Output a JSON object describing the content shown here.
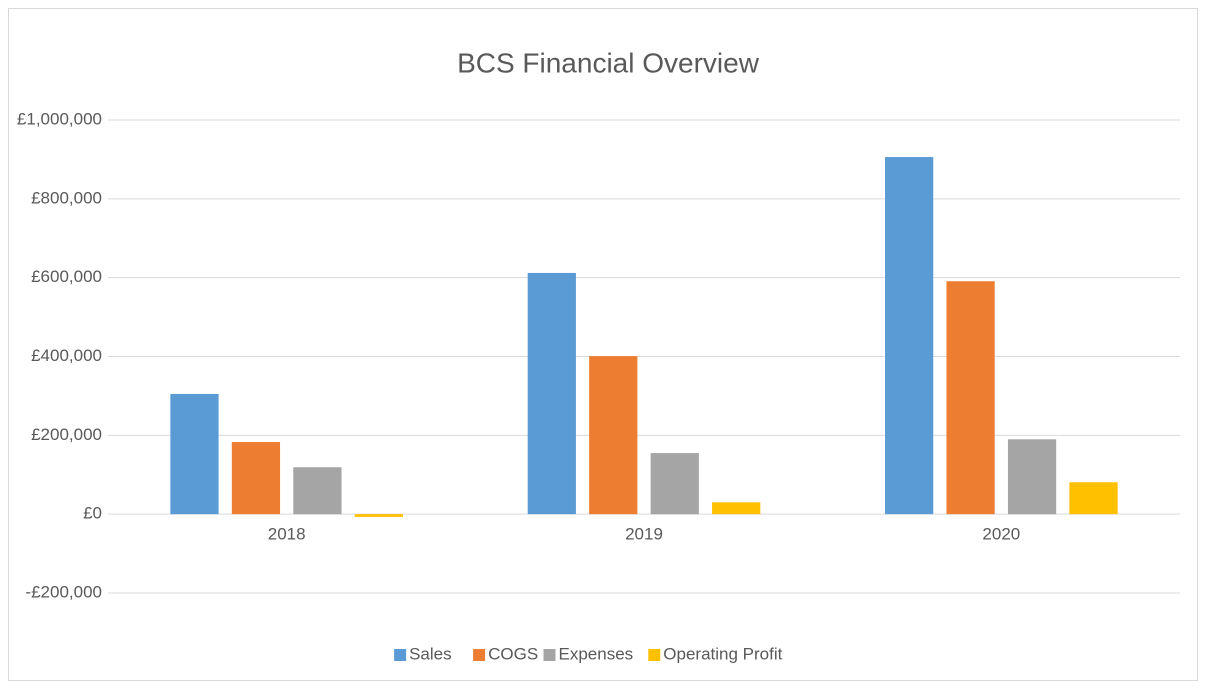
{
  "chart_data": {
    "type": "bar",
    "title": "BCS Financial Overview",
    "categories": [
      "2018",
      "2019",
      "2020"
    ],
    "series": [
      {
        "name": "Sales",
        "color": "#5b9bd5",
        "values": [
          305000,
          612000,
          906000
        ]
      },
      {
        "name": "COGS",
        "color": "#ed7d31",
        "values": [
          183000,
          401000,
          591000
        ]
      },
      {
        "name": "Expenses",
        "color": "#a5a5a5",
        "values": [
          119000,
          155000,
          190000
        ]
      },
      {
        "name": "Operating Profit",
        "color": "#ffc000",
        "values": [
          -7000,
          30000,
          81000
        ]
      }
    ],
    "ylim": [
      -200000,
      1000000
    ],
    "yticks": [
      {
        "value": -200000,
        "label": "-£200,000"
      },
      {
        "value": 0,
        "label": "£0"
      },
      {
        "value": 200000,
        "label": "£200,000"
      },
      {
        "value": 400000,
        "label": "£400,000"
      },
      {
        "value": 600000,
        "label": "£600,000"
      },
      {
        "value": 800000,
        "label": "£800,000"
      },
      {
        "value": 1000000,
        "label": "£1,000,000"
      }
    ],
    "grid": true,
    "legend": "bottom"
  }
}
